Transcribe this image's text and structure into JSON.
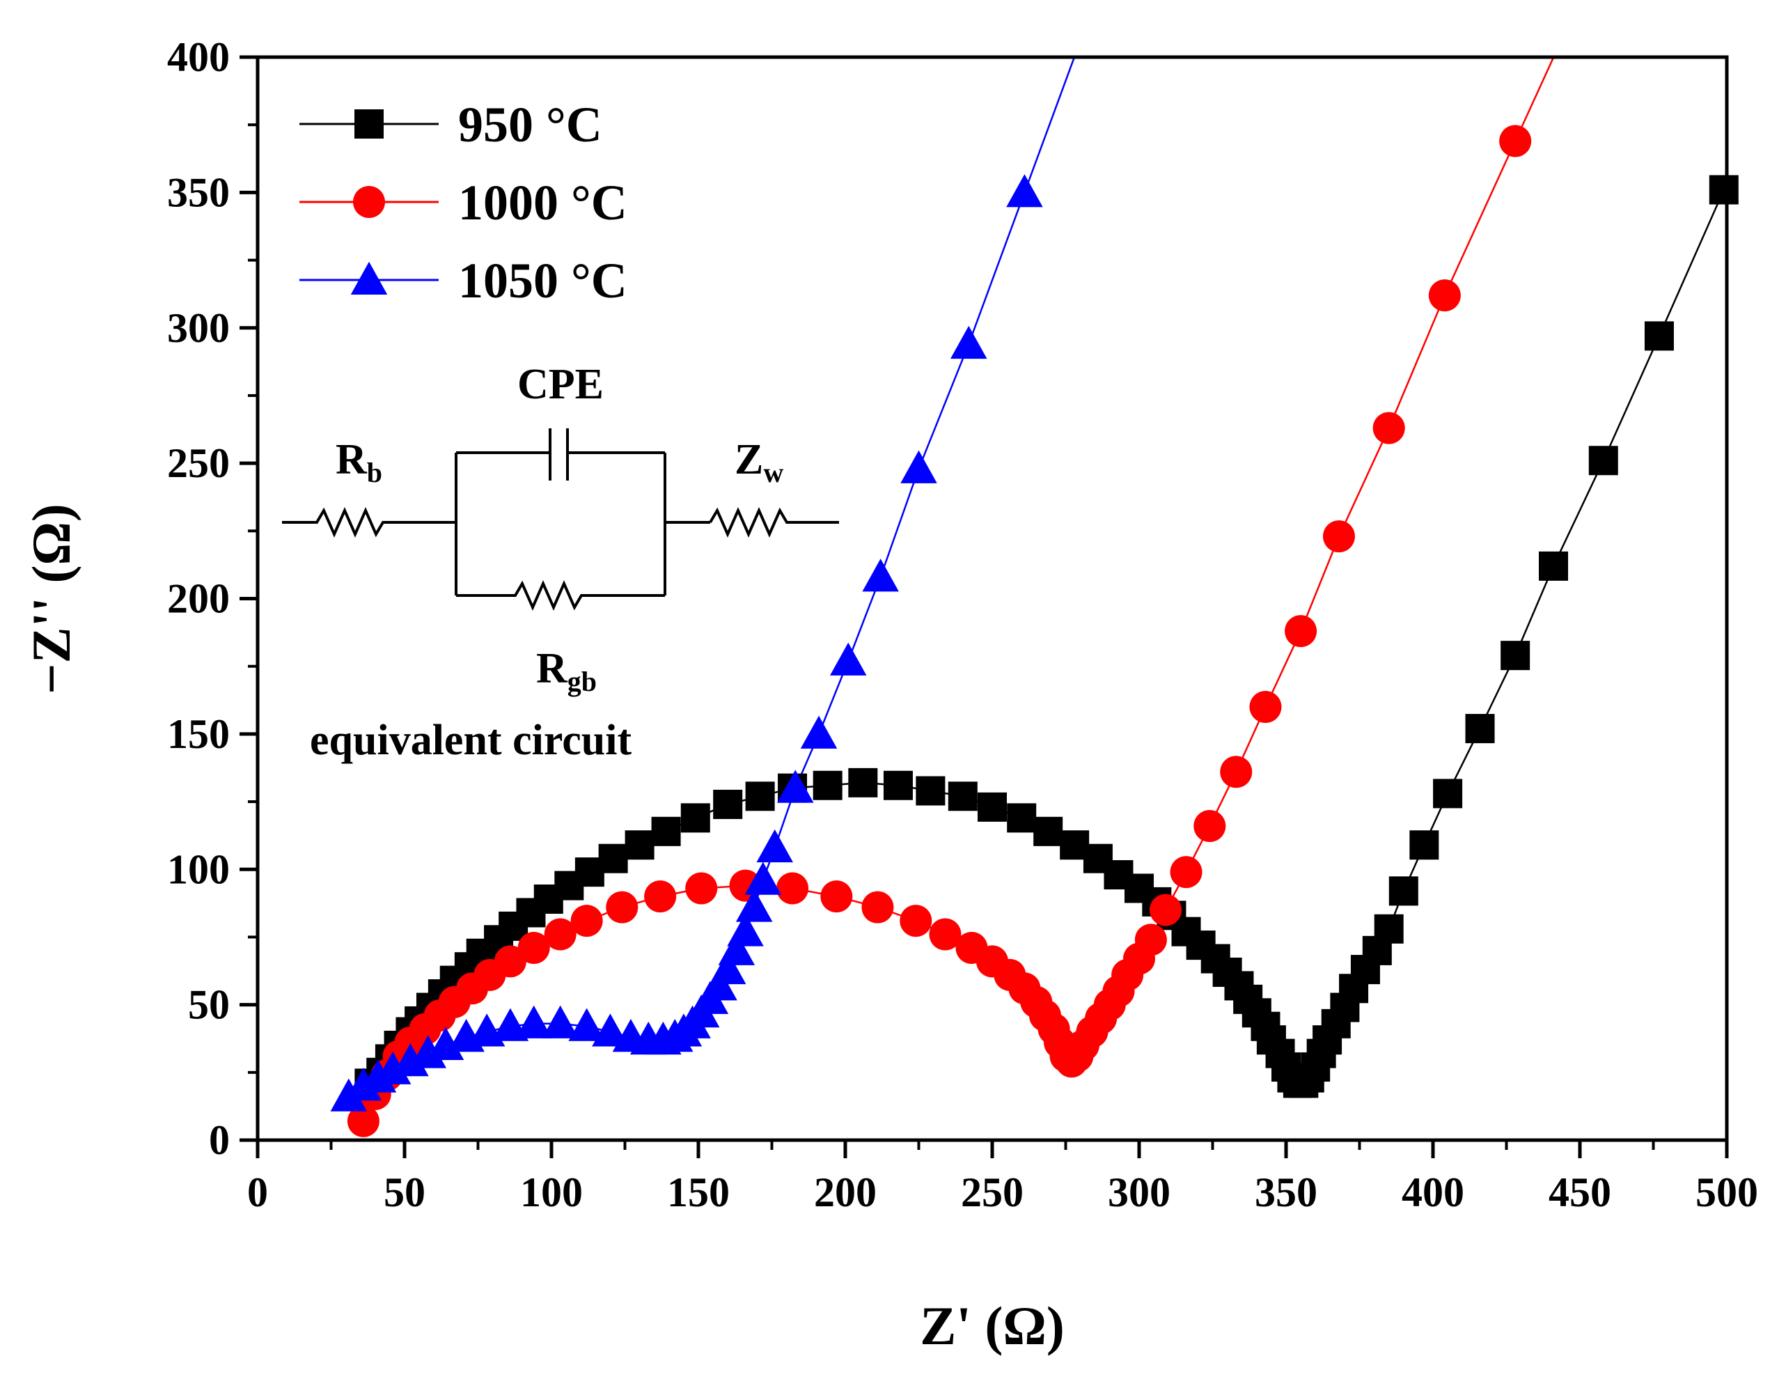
{
  "chart_data": {
    "type": "scatter",
    "xlabel": "Z' (Ω)",
    "ylabel": "−Z'' (Ω)",
    "xlim": [
      0,
      500
    ],
    "ylim": [
      0,
      400
    ],
    "xticks": [
      0,
      50,
      100,
      150,
      200,
      250,
      300,
      350,
      400,
      450,
      500
    ],
    "yticks": [
      0,
      50,
      100,
      150,
      200,
      250,
      300,
      350,
      400
    ],
    "legend_position": "top-left",
    "series": [
      {
        "name": "950 °C",
        "color": "#000000",
        "marker": "square",
        "points": [
          [
            38,
            21
          ],
          [
            42,
            25
          ],
          [
            45,
            30
          ],
          [
            48,
            35
          ],
          [
            52,
            40
          ],
          [
            55,
            44
          ],
          [
            59,
            49
          ],
          [
            63,
            54
          ],
          [
            67,
            59
          ],
          [
            72,
            64
          ],
          [
            76,
            69
          ],
          [
            82,
            74
          ],
          [
            87,
            79
          ],
          [
            93,
            84
          ],
          [
            99,
            89
          ],
          [
            106,
            94
          ],
          [
            113,
            99
          ],
          [
            121,
            104
          ],
          [
            130,
            109
          ],
          [
            139,
            114
          ],
          [
            149,
            119
          ],
          [
            160,
            124
          ],
          [
            171,
            127
          ],
          [
            182,
            130
          ],
          [
            194,
            131
          ],
          [
            206,
            132
          ],
          [
            218,
            131
          ],
          [
            229,
            129
          ],
          [
            240,
            127
          ],
          [
            250,
            123
          ],
          [
            260,
            119
          ],
          [
            269,
            114
          ],
          [
            278,
            109
          ],
          [
            286,
            104
          ],
          [
            293,
            98
          ],
          [
            300,
            93
          ],
          [
            306,
            88
          ],
          [
            311,
            83
          ],
          [
            316,
            77
          ],
          [
            321,
            72
          ],
          [
            326,
            67
          ],
          [
            330,
            62
          ],
          [
            334,
            57
          ],
          [
            337,
            52
          ],
          [
            340,
            47
          ],
          [
            343,
            42
          ],
          [
            345,
            37
          ],
          [
            348,
            32
          ],
          [
            350,
            27
          ],
          [
            352,
            23
          ],
          [
            354,
            21
          ],
          [
            356,
            21
          ],
          [
            358,
            23
          ],
          [
            360,
            27
          ],
          [
            362,
            32
          ],
          [
            364,
            37
          ],
          [
            367,
            43
          ],
          [
            370,
            49
          ],
          [
            373,
            56
          ],
          [
            377,
            63
          ],
          [
            381,
            70
          ],
          [
            385,
            78
          ],
          [
            390,
            92
          ],
          [
            397,
            109
          ],
          [
            405,
            128
          ],
          [
            416,
            152
          ],
          [
            428,
            179
          ],
          [
            441,
            212
          ],
          [
            458,
            251
          ],
          [
            477,
            297
          ],
          [
            499,
            351
          ]
        ]
      },
      {
        "name": "1000 °C",
        "color": "#ff0000",
        "marker": "circle",
        "points": [
          [
            36,
            7
          ],
          [
            40,
            17
          ],
          [
            44,
            24
          ],
          [
            48,
            31
          ],
          [
            52,
            36
          ],
          [
            57,
            41
          ],
          [
            62,
            46
          ],
          [
            67,
            51
          ],
          [
            73,
            56
          ],
          [
            79,
            61
          ],
          [
            86,
            66
          ],
          [
            94,
            71
          ],
          [
            103,
            76
          ],
          [
            112,
            81
          ],
          [
            124,
            86
          ],
          [
            137,
            90
          ],
          [
            151,
            93
          ],
          [
            166,
            94
          ],
          [
            182,
            93
          ],
          [
            197,
            90
          ],
          [
            211,
            86
          ],
          [
            224,
            81
          ],
          [
            234,
            76
          ],
          [
            243,
            71
          ],
          [
            250,
            66
          ],
          [
            256,
            61
          ],
          [
            261,
            56
          ],
          [
            265,
            51
          ],
          [
            268,
            46
          ],
          [
            271,
            41
          ],
          [
            273,
            36
          ],
          [
            275,
            31
          ],
          [
            277,
            29
          ],
          [
            279,
            31
          ],
          [
            281,
            35
          ],
          [
            284,
            40
          ],
          [
            287,
            45
          ],
          [
            290,
            50
          ],
          [
            293,
            55
          ],
          [
            296,
            61
          ],
          [
            300,
            67
          ],
          [
            304,
            74
          ],
          [
            309,
            85
          ],
          [
            316,
            99
          ],
          [
            324,
            116
          ],
          [
            333,
            136
          ],
          [
            343,
            160
          ],
          [
            355,
            188
          ],
          [
            368,
            223
          ],
          [
            385,
            263
          ],
          [
            404,
            312
          ],
          [
            428,
            369
          ]
        ]
      },
      {
        "name": "1050 °C",
        "color": "#0000ff",
        "marker": "triangle",
        "points": [
          [
            31,
            16
          ],
          [
            36,
            20
          ],
          [
            41,
            23
          ],
          [
            46,
            26
          ],
          [
            52,
            29
          ],
          [
            58,
            32
          ],
          [
            64,
            35
          ],
          [
            71,
            38
          ],
          [
            78,
            40
          ],
          [
            86,
            42
          ],
          [
            94,
            43
          ],
          [
            103,
            43
          ],
          [
            112,
            42
          ],
          [
            120,
            40
          ],
          [
            127,
            38
          ],
          [
            133,
            37
          ],
          [
            138,
            37
          ],
          [
            142,
            38
          ],
          [
            145,
            40
          ],
          [
            148,
            43
          ],
          [
            151,
            47
          ],
          [
            154,
            52
          ],
          [
            157,
            57
          ],
          [
            160,
            63
          ],
          [
            163,
            70
          ],
          [
            166,
            77
          ],
          [
            169,
            86
          ],
          [
            172,
            96
          ],
          [
            176,
            108
          ],
          [
            183,
            130
          ],
          [
            191,
            150
          ],
          [
            201,
            177
          ],
          [
            212,
            208
          ],
          [
            225,
            248
          ],
          [
            242,
            294
          ],
          [
            261,
            350
          ]
        ]
      }
    ],
    "inset": {
      "labels": {
        "rb_main": "R",
        "rb_sub": "b",
        "cpe": "CPE",
        "zw_main": "Z",
        "zw_sub": "w",
        "rgb_main": "R",
        "rgb_sub": "gb",
        "caption": "equivalent circuit"
      }
    }
  }
}
